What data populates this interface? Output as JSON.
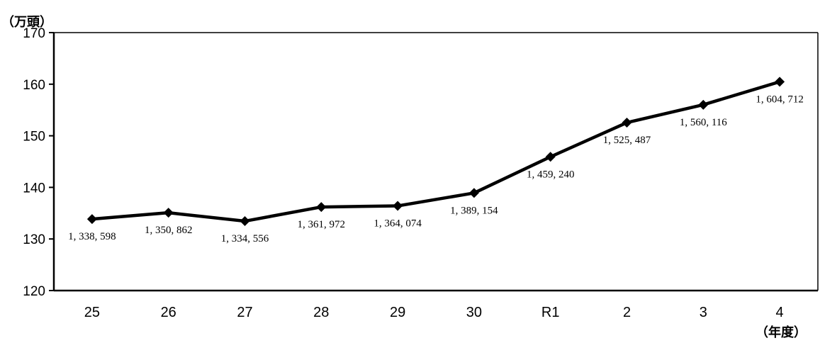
{
  "chart_data": {
    "type": "line",
    "y_unit_label": "（万頭）",
    "x_unit_label": "（年度）",
    "categories": [
      "25",
      "26",
      "27",
      "28",
      "29",
      "30",
      "R1",
      "2",
      "3",
      "4"
    ],
    "y_ticks": [
      "120",
      "130",
      "140",
      "150",
      "160",
      "170"
    ],
    "ylim": [
      120,
      170
    ],
    "grid": false,
    "legend": "none",
    "series": [
      {
        "values": [
          133.8598,
          135.0862,
          133.4556,
          136.1972,
          136.4074,
          138.9154,
          145.924,
          152.5487,
          156.0116,
          160.4712
        ],
        "data_labels": [
          "1, 338, 598",
          "1, 350, 862",
          "1, 334, 556",
          "1, 361, 972",
          "1, 364, 074",
          "1, 389, 154",
          "1, 459, 240",
          "1, 525, 487",
          "1, 560, 116",
          "1, 604, 712"
        ],
        "color": "#000000",
        "marker": "diamond"
      }
    ]
  }
}
